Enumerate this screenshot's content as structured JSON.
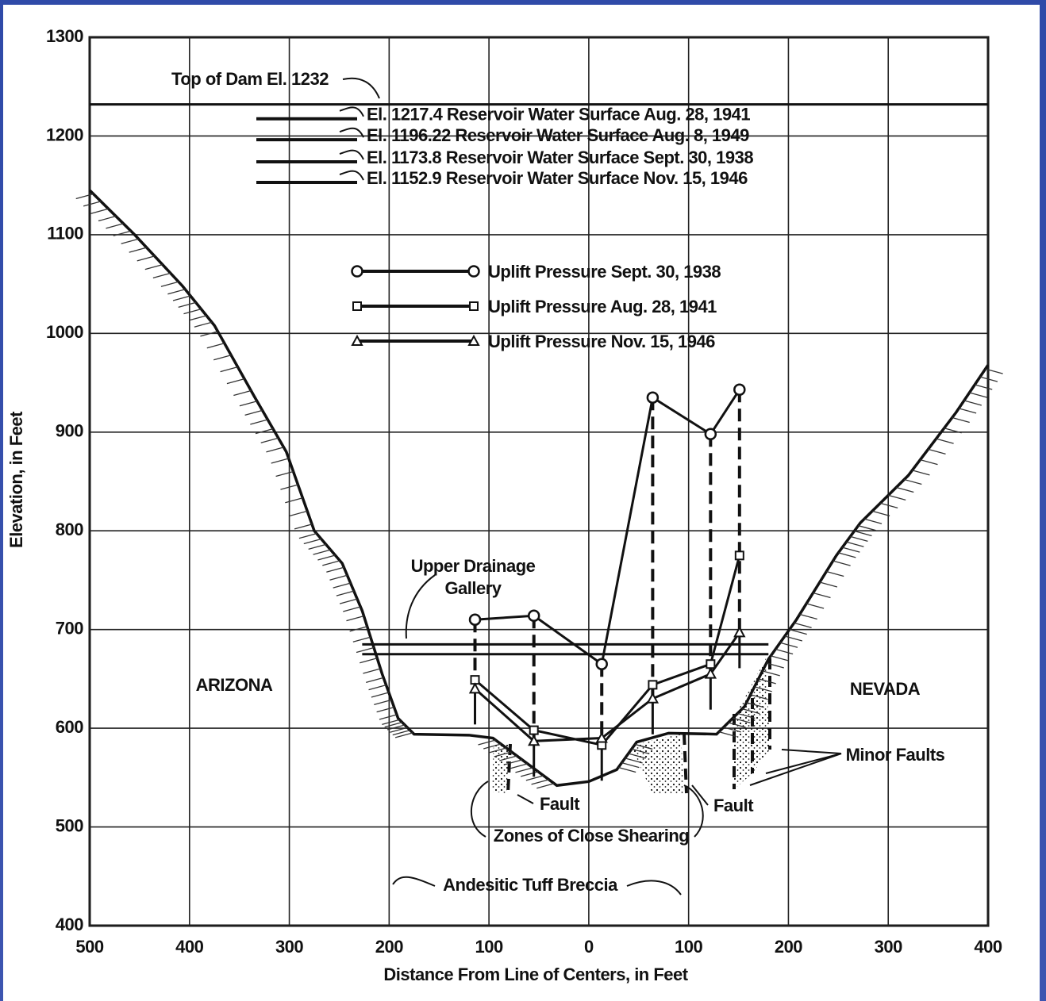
{
  "chart_data": {
    "type": "line",
    "xlabel": "Distance From Line of Centers, in Feet",
    "ylabel": "Elevation, in Feet",
    "xlim": [
      -500,
      400
    ],
    "ylim": [
      400,
      1300
    ],
    "xticks": [
      {
        "value": -500,
        "label": "500"
      },
      {
        "value": -400,
        "label": "400"
      },
      {
        "value": -300,
        "label": "300"
      },
      {
        "value": -200,
        "label": "200"
      },
      {
        "value": -100,
        "label": "100"
      },
      0,
      100,
      200,
      300,
      400
    ],
    "yticks": [
      400,
      500,
      600,
      700,
      800,
      900,
      1000,
      1100,
      1200,
      1300
    ],
    "grid": true,
    "top_of_dam": {
      "label": "Top of Dam El. 1232",
      "value": 1232
    },
    "reservoir_levels": [
      {
        "label": "El. 1217.4 Reservoir Water Surface Aug. 28, 1941",
        "value": 1217.4
      },
      {
        "label": "El. 1196.22 Reservoir Water Surface Aug. 8, 1949",
        "value": 1196.22
      },
      {
        "label": "El. 1173.8 Reservoir Water Surface Sept. 30, 1938",
        "value": 1173.8
      },
      {
        "label": "El. 1152.9 Reservoir Water Surface Nov. 15, 1946",
        "value": 1152.9
      }
    ],
    "x": [
      -114,
      -55,
      13,
      64,
      122,
      151
    ],
    "series": [
      {
        "name": "Uplift Pressure Sept. 30, 1938",
        "color": "#111111",
        "marker": "circle",
        "values": [
          710,
          714,
          665,
          935,
          898,
          943
        ]
      },
      {
        "name": "Uplift Pressure Aug. 28, 1941",
        "color": "#111111",
        "marker": "square",
        "values": [
          649,
          598,
          583,
          644,
          665,
          775
        ]
      },
      {
        "name": "Uplift Pressure Nov. 15, 1946",
        "color": "#111111",
        "marker": "triangle",
        "values": [
          640,
          587,
          590,
          630,
          655,
          697
        ]
      }
    ],
    "ground_profile": {
      "x": [
        -500,
        -455,
        -407,
        -375,
        -335,
        -303,
        -275,
        -247,
        -227,
        -207,
        -191,
        -175,
        -120,
        -96,
        -64,
        -32,
        0,
        28,
        48,
        80,
        128,
        156,
        180,
        208,
        248,
        272,
        320,
        368,
        400
      ],
      "values": [
        1145,
        1100,
        1048,
        1008,
        936,
        880,
        800,
        767,
        719,
        655,
        610,
        594,
        593,
        590,
        566,
        542,
        546,
        558,
        586,
        595,
        594,
        622,
        670,
        710,
        775,
        808,
        856,
        920,
        968
      ]
    },
    "gallery": {
      "label": [
        "Upper Drainage",
        "Gallery"
      ],
      "values": [
        685,
        675
      ],
      "x": [
        -227,
        180
      ]
    },
    "annotations": {
      "arizona": "ARIZONA",
      "nevada": "NEVADA",
      "minor_faults": "Minor Faults",
      "fault_left": "Fault",
      "fault_right": "Fault",
      "shearing": "Zones of Close Shearing",
      "breccia": "Andesitic Tuff Breccia"
    }
  }
}
